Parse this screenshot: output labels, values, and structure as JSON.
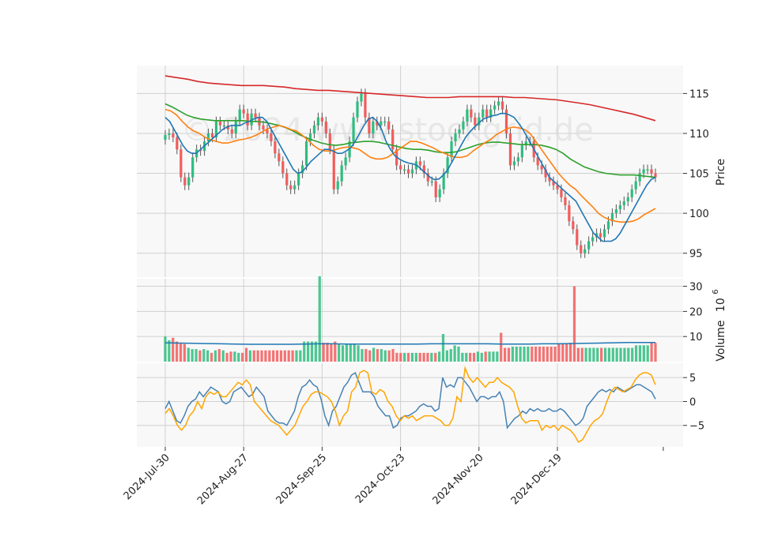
{
  "watermark": "© 2024 www.stockgrid.de",
  "colors": {
    "up": "#2ebd7f",
    "down": "#f25c5c",
    "ma_fast": "#1f77b4",
    "ma_mid": "#ff7f0e",
    "ma_slow": "#2ca02c",
    "ma_long": "#d62728",
    "volume_avg": "#1f77b4",
    "osc_line1": "#4682b4",
    "osc_line2": "#ffa500",
    "panel_bg": "#f8f8f8",
    "grid": "#d0d0d0"
  },
  "chart_data": {
    "type": "candlestick",
    "price_panel": {
      "ylabel": "Price",
      "ylim": [
        92,
        118.5
      ],
      "yticks": [
        "95",
        "100",
        "105",
        "110",
        "115"
      ],
      "ytick_values": [
        95,
        100,
        105,
        110,
        115
      ]
    },
    "volume_panel": {
      "ylabel": "Volume",
      "ylabel_exponent": "10",
      "ylabel_exponent_power": "6",
      "ylim": [
        0,
        33
      ],
      "yticks": [
        "10",
        "20",
        "30"
      ],
      "ytick_values": [
        10,
        20,
        30
      ]
    },
    "oscillator_panel": {
      "ylim": [
        -9.5,
        8
      ],
      "yticks": [
        "5",
        "0",
        "−5"
      ],
      "ytick_values": [
        5,
        0,
        -5
      ]
    },
    "x_ticks": [
      {
        "label": "2024-Jul-30",
        "index": 0
      },
      {
        "label": "2024-Aug-27",
        "index": 20
      },
      {
        "label": "2024-Sep-25",
        "index": 40
      },
      {
        "label": "2024-Oct-23",
        "index": 60
      },
      {
        "label": "2024-Nov-20",
        "index": 80
      },
      {
        "label": "2024-Dec-19",
        "index": 100
      }
    ],
    "candles_close": [
      109.8,
      110,
      109.5,
      108,
      104.5,
      103.5,
      104.5,
      107,
      108,
      107.8,
      109,
      110,
      109.5,
      111.5,
      111,
      111,
      110.5,
      110,
      111.5,
      113,
      112.5,
      111,
      112.5,
      112,
      111,
      110.5,
      110,
      109,
      107.5,
      106.5,
      105,
      103.5,
      103,
      103.5,
      105,
      106,
      109,
      110,
      111,
      112,
      111.5,
      110,
      108,
      103,
      104,
      106,
      107,
      109,
      112,
      114,
      115,
      112,
      110,
      111.5,
      111,
      111.5,
      111.5,
      110.5,
      108,
      106,
      105.5,
      105.5,
      105,
      105.5,
      106.5,
      106,
      105,
      104,
      104,
      102,
      103,
      105,
      107,
      109,
      110,
      110.5,
      111.5,
      113,
      112,
      111,
      112,
      113,
      112,
      113,
      113.5,
      114,
      113,
      110,
      106,
      106.5,
      107,
      108.5,
      109,
      109,
      107,
      106,
      105.5,
      104.5,
      104,
      103.5,
      103,
      102,
      101,
      99,
      98,
      96,
      95,
      95.5,
      96.5,
      97,
      97.5,
      97,
      98,
      99,
      100,
      100.5,
      101,
      101.5,
      102,
      103,
      104,
      105,
      105.5,
      105.5,
      105,
      104.5
    ],
    "volumes": [
      10,
      8.5,
      9.5,
      8,
      7.5,
      7,
      5.5,
      5,
      5,
      4.5,
      5,
      4.5,
      3.5,
      4.5,
      5,
      4.5,
      3.5,
      4,
      4,
      3.5,
      3.5,
      5.5,
      4.5,
      4.5,
      4.5,
      4.5,
      4.5,
      4.5,
      4.5,
      4.5,
      4.5,
      4.5,
      4.5,
      4.5,
      4.5,
      4.5,
      8,
      8,
      8,
      8,
      34,
      7.5,
      7.5,
      7,
      8,
      7,
      6.5,
      7,
      7,
      7,
      6.5,
      5,
      5,
      4.5,
      5.5,
      5,
      5,
      4.5,
      4.5,
      5,
      3.5,
      3.5,
      3.5,
      3.5,
      3.5,
      3.5,
      3.5,
      3.5,
      3.5,
      3.5,
      3.5,
      4,
      11,
      4.5,
      5,
      6.5,
      6,
      3.5,
      3.5,
      3.5,
      3.5,
      4,
      3.5,
      4,
      4,
      4,
      4,
      11.5,
      5.5,
      5.5,
      6,
      6,
      6,
      6,
      6,
      6,
      6,
      6,
      6,
      6,
      6,
      6,
      7,
      7,
      7,
      7.5,
      30,
      5.5,
      5.5,
      5.5,
      5.5,
      5.5,
      5.5,
      5.5,
      5.5,
      5.5,
      5.5,
      5.5,
      5.5,
      5.5,
      5.5,
      5.5,
      6.5,
      6.5,
      6.5,
      6.5,
      7.5,
      7.5
    ],
    "ma_fast": [
      112,
      111.5,
      110.5,
      109.5,
      108.5,
      107.8,
      107.5,
      107.5,
      108,
      108.5,
      109,
      109.5,
      110,
      110.5,
      110.8,
      111,
      111,
      111,
      111.3,
      111.5,
      111.8,
      112,
      112,
      111.5,
      110.5,
      109.5,
      108.5,
      107.5,
      106.5,
      105.5,
      105,
      105.2,
      105.8,
      106.5,
      107,
      107.5,
      108,
      108,
      107.8,
      107.5,
      107.5,
      107.8,
      108.2,
      109,
      110,
      111,
      111.8,
      112,
      111.5,
      110.5,
      109,
      108,
      107.2,
      106.8,
      106.5,
      106.3,
      106.2,
      106,
      105.5,
      105,
      104.5,
      104.2,
      104.3,
      104.8,
      105.5,
      106.5,
      107.5,
      108.5,
      109.5,
      110.2,
      110.8,
      111.3,
      111.8,
      112,
      112.2,
      112.3,
      112.5,
      112.5,
      112.3,
      112,
      111.3,
      110.5,
      109.5,
      108.5,
      107.5,
      106.5,
      105.5,
      104.5,
      104,
      103.5,
      103,
      102.5,
      102,
      101.5,
      100.5,
      99.5,
      98.5,
      97.5,
      97,
      96.5,
      96.5,
      96.5,
      96.8,
      97.5,
      98.5,
      99.5,
      100.5,
      101.5,
      102.5,
      103.5,
      104.2,
      104.5
    ],
    "ma_mid": [
      113,
      112.8,
      112.3,
      111.5,
      110.8,
      110.3,
      110,
      109.5,
      109.2,
      109,
      108.8,
      108.8,
      109,
      109.2,
      109.3,
      109.5,
      109.8,
      110.2,
      110.6,
      110.8,
      111,
      110.8,
      110.5,
      110.3,
      109.8,
      109.2,
      108.5,
      108,
      107.8,
      107.8,
      108,
      108.2,
      108.3,
      108.2,
      108,
      107.5,
      107,
      106.8,
      106.8,
      107,
      107.5,
      108,
      108.5,
      109,
      109,
      108.8,
      108.5,
      108.2,
      107.8,
      107.5,
      107.2,
      107,
      107,
      107.2,
      107.8,
      108.3,
      108.8,
      109.2,
      109.8,
      110.2,
      110.6,
      110.8,
      110.7,
      110.5,
      110,
      109,
      108,
      107,
      106,
      105,
      104.2,
      103.5,
      103,
      102.2,
      101.5,
      100.8,
      100,
      99.5,
      99.2,
      99,
      98.9,
      98.9,
      99,
      99.3,
      99.8,
      100.2,
      100.6
    ],
    "ma_slow": [
      113.7,
      113.3,
      112.8,
      112.3,
      112,
      111.8,
      111.7,
      111.6,
      111.6,
      111.6,
      111.6,
      111.6,
      111.5,
      111.5,
      111.4,
      111.2,
      111,
      110.7,
      110.3,
      109.8,
      109.4,
      109.1,
      108.8,
      108.6,
      108.5,
      108.6,
      108.8,
      108.9,
      109,
      109,
      108.9,
      108.7,
      108.5,
      108.3,
      108.1,
      108,
      108,
      107.9,
      107.7,
      107.6,
      107.6,
      107.7,
      108,
      108.3,
      108.6,
      108.8,
      108.9,
      108.9,
      108.8,
      108.7,
      108.6,
      108.6,
      108.6,
      108.5,
      108.3,
      108,
      107.5,
      106.8,
      106.3,
      105.8,
      105.5,
      105.2,
      105,
      104.9,
      104.8,
      104.8,
      104.8,
      104.7,
      104.6,
      104.5
    ],
    "ma_long": [
      117.2,
      117,
      116.8,
      116.5,
      116.3,
      116.2,
      116.1,
      116,
      116,
      116,
      115.9,
      115.8,
      115.6,
      115.5,
      115.4,
      115.4,
      115.3,
      115.2,
      115.1,
      115,
      114.9,
      114.8,
      114.7,
      114.6,
      114.5,
      114.5,
      114.5,
      114.6,
      114.6,
      114.6,
      114.6,
      114.6,
      114.5,
      114.5,
      114.4,
      114.3,
      114.2,
      114,
      113.8,
      113.6,
      113.3,
      113,
      112.7,
      112.4,
      112,
      111.6
    ],
    "volume_avg": [
      7.5,
      7.4,
      7.3,
      7.2,
      7.1,
      7.0,
      6.9,
      6.9,
      6.9,
      6.9,
      7.0,
      7.1,
      7.1,
      7.0,
      7.0,
      7.0,
      7.0,
      7.0,
      7.0,
      7.1,
      7.1,
      7.1,
      7.1,
      7.1,
      7.0,
      7.0,
      7.0,
      7.1,
      7.1,
      7.2,
      7.3,
      7.4,
      7.5,
      7.6,
      7.6,
      7.6
    ],
    "osc_line1": [
      -1.5,
      0,
      -2,
      -4,
      -4.5,
      -3,
      -1,
      0,
      0.5,
      2,
      1,
      2,
      3,
      2.5,
      2,
      0,
      -0.5,
      0,
      2,
      2.5,
      3,
      2,
      1,
      1.5,
      3,
      2,
      1,
      -2,
      -3,
      -4,
      -4.5,
      -4.5,
      -5,
      -3.5,
      -2,
      1,
      3,
      3.5,
      4.5,
      3.5,
      3,
      0.5,
      -3,
      -5,
      -2,
      -1,
      1,
      3,
      4,
      5.5,
      6,
      4,
      2,
      2,
      2,
      1,
      -1,
      -2,
      -3,
      -3,
      -5.5,
      -5,
      -3.5,
      -3,
      -3,
      -2.5,
      -2,
      -1,
      -0.5,
      -1,
      -1,
      -2,
      -1.5,
      5,
      3,
      3.5,
      3,
      5,
      5,
      4,
      3,
      1.5,
      0,
      1,
      1,
      0.5,
      1,
      1,
      2,
      0,
      -5.5,
      -4.5,
      -3.5,
      -3,
      -2,
      -2.5,
      -1.5,
      -2,
      -1.5,
      -2,
      -2,
      -1.5,
      -2,
      -2,
      -1.5,
      -2,
      -3,
      -4,
      -5,
      -4.5,
      -3.5,
      -1,
      0,
      1,
      2,
      2.5,
      2,
      2.5,
      2,
      3,
      2.5,
      2,
      2.5,
      3,
      3.5,
      3.5,
      3,
      2.5,
      2,
      0.5
    ],
    "osc_line2": [
      -2.5,
      -1.5,
      -3,
      -5,
      -6,
      -5,
      -3,
      -2,
      0,
      -1.5,
      1,
      2,
      1.5,
      2,
      1,
      1,
      2,
      3,
      4,
      3.5,
      4.5,
      3.5,
      0,
      -1,
      -2,
      -3,
      -4,
      -4.5,
      -5,
      -6,
      -7,
      -6,
      -5,
      -3,
      -1,
      0,
      1.5,
      2,
      2,
      1.5,
      1,
      0,
      -2,
      -5,
      -3,
      -2,
      2,
      3,
      6,
      6.5,
      6,
      2,
      1.5,
      2.5,
      2,
      0,
      -1,
      -3,
      -4,
      -3,
      -3.5,
      -3,
      -4,
      -3.5,
      -3,
      -3,
      -3,
      -3.5,
      -4,
      -5,
      -5,
      -3.5,
      1,
      0,
      7,
      5,
      4,
      5,
      4,
      3,
      4,
      4,
      5,
      4,
      3.5,
      3,
      2,
      -1,
      -3.5,
      -4.5,
      -4,
      -4,
      -4,
      -6,
      -5,
      -5.5,
      -5,
      -6,
      -5,
      -5.5,
      -6,
      -7,
      -8.5,
      -8,
      -6.5,
      -5,
      -4,
      -3.5,
      -2.5,
      0,
      2,
      3,
      2.5,
      2,
      2.5,
      3,
      4.5,
      5.5,
      6,
      6,
      5.5,
      3.5
    ]
  }
}
